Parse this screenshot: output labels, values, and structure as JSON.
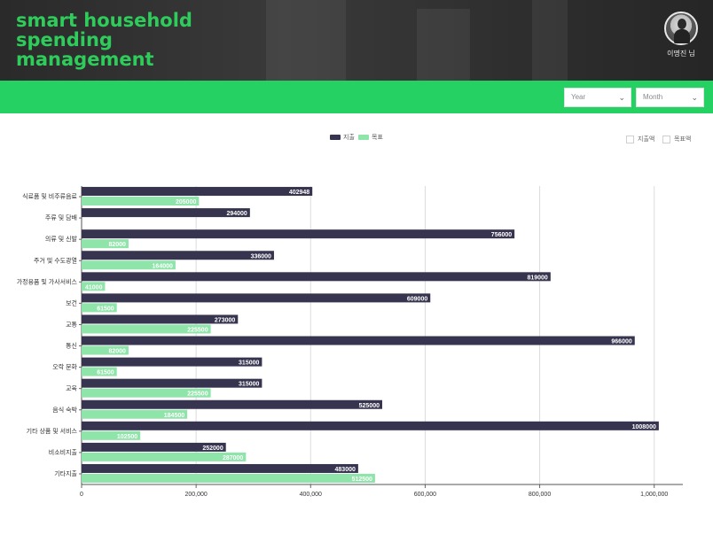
{
  "header": {
    "title_lines": [
      "smart household",
      "spending",
      "management"
    ],
    "username": "이명진 님"
  },
  "filters": {
    "year_label": "Year",
    "month_label": "Month"
  },
  "legend": {
    "spend_label": "지출",
    "target_label": "목표"
  },
  "toggles": {
    "spend_amount_label": "지출액",
    "target_amount_label": "목표액"
  },
  "colors": {
    "brand_green": "#26d163",
    "spend_bar": "#36344f",
    "target_bar": "#8fe4a9"
  },
  "chart_data": {
    "type": "bar",
    "orientation": "horizontal",
    "categories": [
      "식료품 및 비주류음료",
      "주류 및 담배",
      "의류 및 신발",
      "주거 및 수도광열",
      "가정용품 및 가사서비스",
      "보건",
      "교통",
      "통신",
      "오락 문화",
      "교육",
      "음식 숙박",
      "기타 상품 및 서비스",
      "비소비지출",
      "기타지출"
    ],
    "series": [
      {
        "name": "지출",
        "values": [
          402948,
          294000,
          756000,
          336000,
          819000,
          609000,
          273000,
          966000,
          315000,
          315000,
          525000,
          1008000,
          252000,
          483000
        ]
      },
      {
        "name": "목표",
        "values": [
          205000,
          null,
          82000,
          164000,
          41000,
          61500,
          225500,
          82000,
          61500,
          225500,
          184500,
          102500,
          287000,
          512500
        ]
      }
    ],
    "xticks": [
      "0",
      "200,000",
      "400,000",
      "600,000",
      "800,000",
      "1,000,000"
    ],
    "xlim": [
      0,
      1050000
    ],
    "grid": true,
    "legend_position": "top-center"
  }
}
